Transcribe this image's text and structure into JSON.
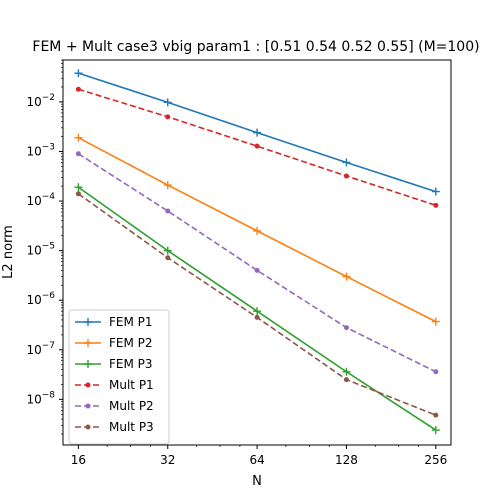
{
  "chart_data": {
    "type": "line",
    "title": "FEM + Mult case3 vbig param1 : [0.51 0.54 0.52 0.55] (M=100)",
    "xlabel": "N",
    "ylabel": "L2 norm",
    "x_scale": "log2",
    "y_scale": "log10",
    "x": [
      16,
      32,
      64,
      128,
      256
    ],
    "x_ticks": [
      "16",
      "32",
      "64",
      "128",
      "256"
    ],
    "xlim": [
      14.2,
      288
    ],
    "y_ticks": [
      {
        "value": 1e-08,
        "base": "10",
        "exp": "−8"
      },
      {
        "value": 1e-07,
        "base": "10",
        "exp": "−7"
      },
      {
        "value": 1e-06,
        "base": "10",
        "exp": "−6"
      },
      {
        "value": 1e-05,
        "base": "10",
        "exp": "−5"
      },
      {
        "value": 0.0001,
        "base": "10",
        "exp": "−4"
      },
      {
        "value": 0.001,
        "base": "10",
        "exp": "−3"
      },
      {
        "value": 0.01,
        "base": "10",
        "exp": "−2"
      }
    ],
    "ylim": [
      1.2e-09,
      0.07
    ],
    "grid": false,
    "legend_position": "lower-left",
    "series": [
      {
        "name": "FEM P1",
        "color": "#1f77b4",
        "style": "solid",
        "marker": "plus",
        "values": [
          0.038,
          0.0098,
          0.0024,
          0.0006,
          0.000155
        ]
      },
      {
        "name": "FEM P2",
        "color": "#ff7f0e",
        "style": "solid",
        "marker": "plus",
        "values": [
          0.0019,
          0.00021,
          2.5e-05,
          3e-06,
          3.7e-07
        ]
      },
      {
        "name": "FEM P3",
        "color": "#2ca02c",
        "style": "solid",
        "marker": "plus",
        "values": [
          0.00019,
          1e-05,
          6e-07,
          3.6e-08,
          2.4e-09
        ]
      },
      {
        "name": "Mult P1",
        "color": "#d62728",
        "style": "dashed",
        "marker": "dot",
        "values": [
          0.018,
          0.005,
          0.00128,
          0.00032,
          8.2e-05
        ]
      },
      {
        "name": "Mult P2",
        "color": "#9467bd",
        "style": "dashed",
        "marker": "dot",
        "values": [
          0.0009,
          6.3e-05,
          4e-06,
          2.8e-07,
          3.6e-08
        ]
      },
      {
        "name": "Mult P3",
        "color": "#8c564b",
        "style": "dashed",
        "marker": "dot",
        "values": [
          0.00014,
          7.2e-06,
          4.5e-07,
          2.5e-08,
          4.8e-09
        ]
      }
    ]
  }
}
